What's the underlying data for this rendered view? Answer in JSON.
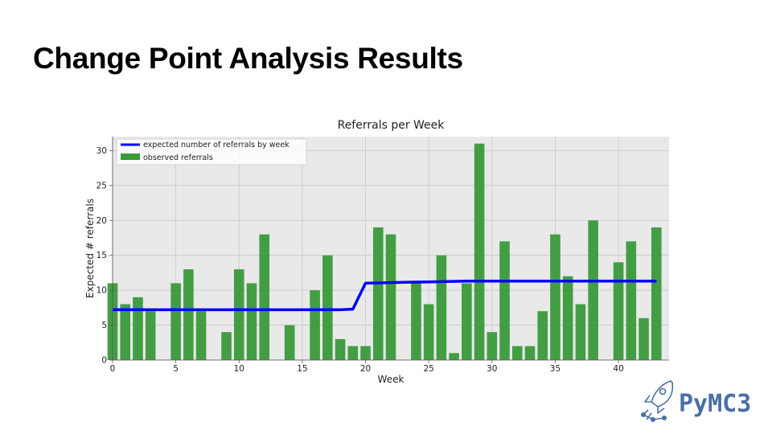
{
  "slide": {
    "title": "Change Point Analysis Results"
  },
  "logo": {
    "text": "PyMC3"
  },
  "colors": {
    "bars": "#3a9a3a",
    "line": "#0000ff",
    "plot_bg": "#e9e9e9",
    "grid": "#c8c8c8"
  },
  "chart_data": {
    "type": "bar",
    "title": "Referrals per Week",
    "xlabel": "Week",
    "ylabel": "Expected # referrals",
    "xlim": [
      0,
      44
    ],
    "ylim": [
      0,
      32
    ],
    "xticks": [
      0,
      5,
      10,
      15,
      20,
      25,
      30,
      35,
      40
    ],
    "yticks": [
      0,
      5,
      10,
      15,
      20,
      25,
      30
    ],
    "grid": true,
    "legend_position": "top-left",
    "series": [
      {
        "name": "observed referrals",
        "kind": "bar",
        "x": [
          0,
          1,
          2,
          3,
          4,
          5,
          6,
          7,
          8,
          9,
          10,
          11,
          12,
          13,
          14,
          15,
          16,
          17,
          18,
          19,
          20,
          21,
          22,
          23,
          24,
          25,
          26,
          27,
          28,
          29,
          30,
          31,
          32,
          33,
          34,
          35,
          36,
          37,
          38,
          39,
          40,
          41,
          42,
          43
        ],
        "values": [
          11,
          8,
          9,
          7,
          0,
          11,
          13,
          7,
          0,
          4,
          13,
          11,
          18,
          0,
          5,
          0,
          10,
          15,
          3,
          2,
          2,
          19,
          18,
          0,
          11,
          8,
          15,
          1,
          11,
          31,
          4,
          17,
          2,
          2,
          7,
          18,
          12,
          8,
          20,
          0,
          14,
          17,
          6,
          19
        ]
      },
      {
        "name": "expected number of referrals by week",
        "kind": "line",
        "x": [
          0,
          18,
          19,
          20,
          22,
          25,
          28,
          43
        ],
        "values": [
          7.2,
          7.2,
          7.3,
          11.0,
          11.1,
          11.2,
          11.3,
          11.3
        ]
      }
    ]
  }
}
